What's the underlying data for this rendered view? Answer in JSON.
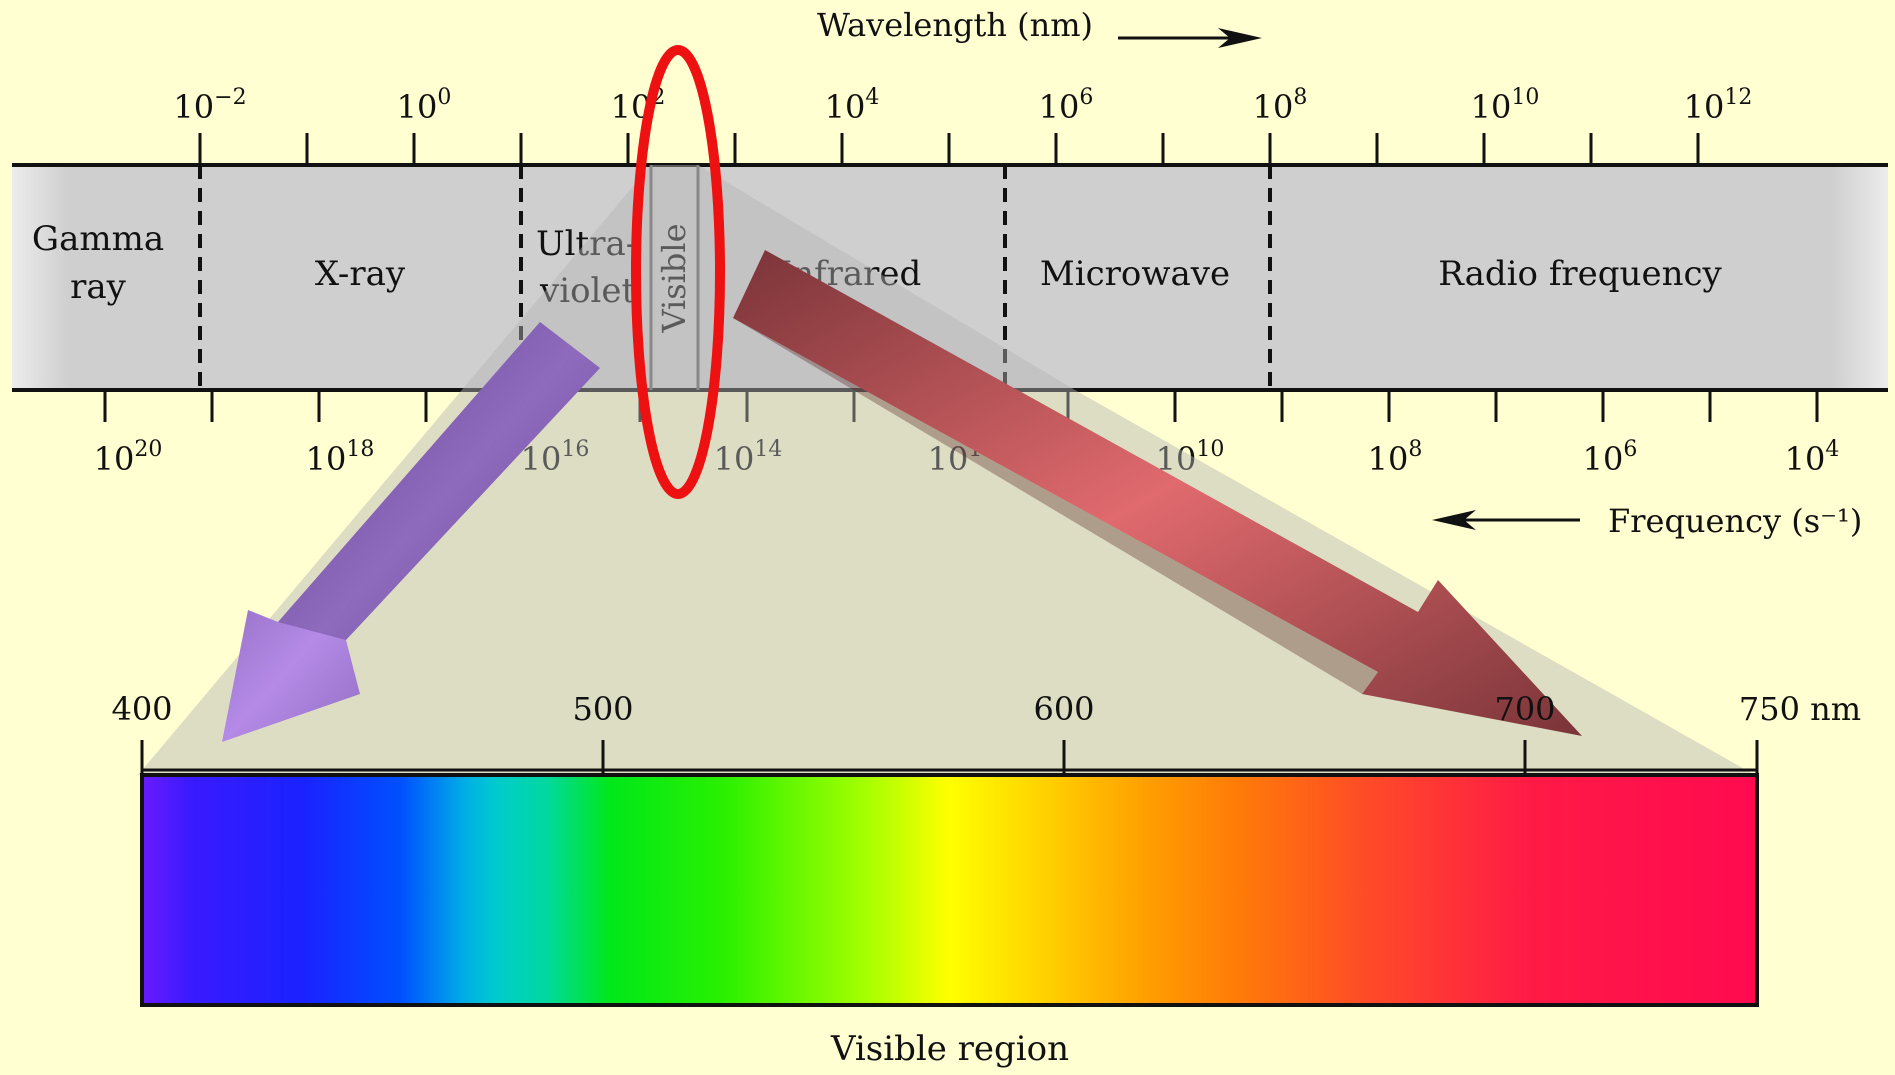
{
  "wavelength_label": "Wavelength (nm)",
  "frequency_label": "Frequency (s⁻¹)",
  "wavelength_ticks": [
    {
      "base": "10",
      "exp": "−2"
    },
    {
      "base": "10",
      "exp": "0"
    },
    {
      "base": "10",
      "exp": "2"
    },
    {
      "base": "10",
      "exp": "4"
    },
    {
      "base": "10",
      "exp": "6"
    },
    {
      "base": "10",
      "exp": "8"
    },
    {
      "base": "10",
      "exp": "10"
    },
    {
      "base": "10",
      "exp": "12"
    }
  ],
  "frequency_ticks": [
    {
      "base": "10",
      "exp": "20"
    },
    {
      "base": "10",
      "exp": "18"
    },
    {
      "base": "10",
      "exp": "16"
    },
    {
      "base": "10",
      "exp": "14"
    },
    {
      "base": "10",
      "exp": "12"
    },
    {
      "base": "10",
      "exp": "10"
    },
    {
      "base": "10",
      "exp": "8"
    },
    {
      "base": "10",
      "exp": "6"
    },
    {
      "base": "10",
      "exp": "4"
    }
  ],
  "regions": {
    "gamma": [
      "Gamma",
      "ray"
    ],
    "xray": "X-ray",
    "uv": [
      "Ultra-",
      "violet"
    ],
    "visible": "Visible",
    "infrared": "Infrared",
    "microwave": "Microwave",
    "radio": "Radio frequency"
  },
  "visible_ticks": [
    "400",
    "500",
    "600",
    "700",
    "750 nm"
  ],
  "visible_region_label": "Visible region",
  "colors": {
    "band": "#cfcfcf",
    "highlight_ellipse": "#ee1111",
    "violet_arrow": "#7a5aa8",
    "red_arrow": "#8e4246",
    "spectrum": [
      "#6a1aff",
      "#1a22ff",
      "#0044ff",
      "#00c8d2",
      "#00e81a",
      "#6aff00",
      "#ffff00",
      "#ffa000",
      "#ff5a14",
      "#ff2a3c",
      "#ff0a50"
    ]
  }
}
